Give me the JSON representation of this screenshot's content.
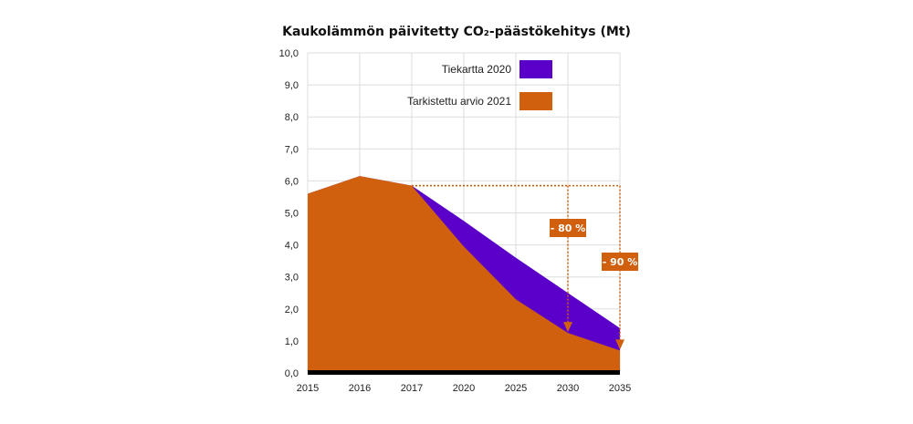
{
  "chart_data": {
    "type": "area",
    "title": "Kaukolämmön päivitetty CO₂-päästökehitys (Mt)",
    "categories": [
      "2015",
      "2016",
      "2017",
      "2020",
      "2025",
      "2030",
      "2035"
    ],
    "series": [
      {
        "name": "Tiekartta 2020",
        "values": [
          5.6,
          6.15,
          5.85,
          4.75,
          3.6,
          2.5,
          1.4
        ],
        "color": "#5a00c8"
      },
      {
        "name": "Tarkistettu arvio 2021",
        "values": [
          5.6,
          6.15,
          5.85,
          3.95,
          2.3,
          1.25,
          0.7
        ],
        "color": "#d0600e"
      }
    ],
    "ylim": [
      0,
      10
    ],
    "yticks": [
      "0,0",
      "1,0",
      "2,0",
      "3,0",
      "4,0",
      "5,0",
      "6,0",
      "7,0",
      "8,0",
      "9,0",
      "10,0"
    ],
    "grid": true,
    "legend": "top-right",
    "annotations": [
      {
        "label": "- 80 %",
        "from_category": "2017",
        "to_category": "2030"
      },
      {
        "label": "- 90 %",
        "from_category": "2017",
        "to_category": "2035"
      }
    ],
    "annotation_color": "#d0600e",
    "gridline_color": "#dddddd",
    "baseline_color": "#000000"
  }
}
